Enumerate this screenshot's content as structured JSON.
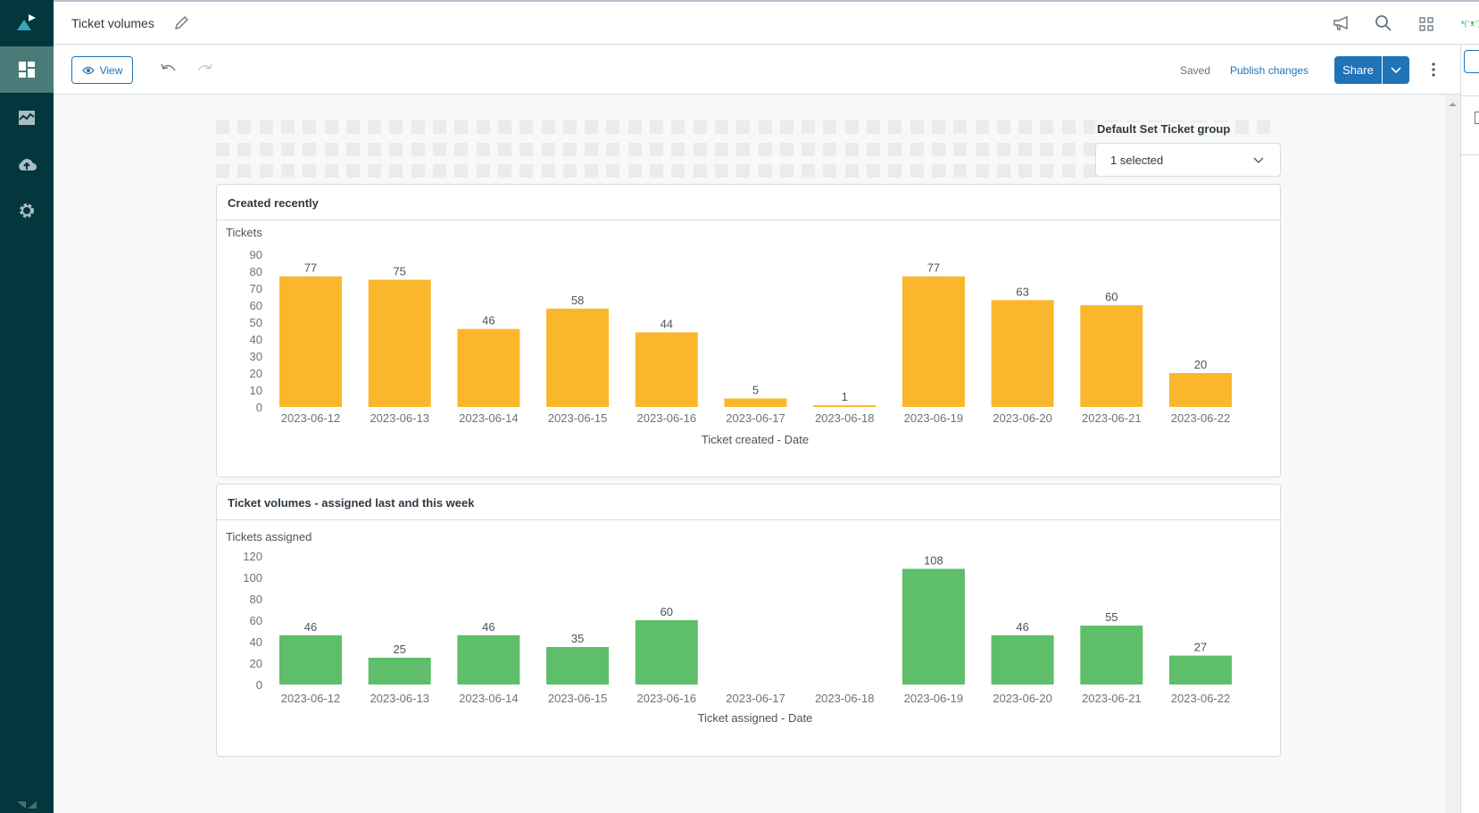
{
  "header": {
    "title": "Ticket volumes",
    "user_text": "ᵜ(ᵔᴥᵔ)"
  },
  "toolbar": {
    "view_label": "View",
    "saved_label": "Saved",
    "publish_label": "Publish changes",
    "share_label": "Share"
  },
  "filter": {
    "label": "Default Set Ticket group",
    "value": "1 selected"
  },
  "sidebar": {
    "items": [
      {
        "name": "dashboards",
        "active": true
      },
      {
        "name": "reports"
      },
      {
        "name": "datasets"
      },
      {
        "name": "admin"
      }
    ]
  },
  "colors": {
    "sidebar": "#03363d",
    "accent": "#1f73b7",
    "created": "#fbb72b",
    "assigned": "#5ebe6a"
  },
  "chart_data": [
    {
      "type": "bar",
      "title": "Created recently",
      "ylabel": "Tickets",
      "xlabel": "Ticket created - Date",
      "ylim": [
        0,
        90
      ],
      "yticks": [
        0,
        10,
        20,
        30,
        40,
        50,
        60,
        70,
        80,
        90
      ],
      "categories": [
        "2023-06-12",
        "2023-06-13",
        "2023-06-14",
        "2023-06-15",
        "2023-06-16",
        "2023-06-17",
        "2023-06-18",
        "2023-06-19",
        "2023-06-20",
        "2023-06-21",
        "2023-06-22"
      ],
      "values": [
        77,
        75,
        46,
        58,
        44,
        5,
        1,
        77,
        63,
        60,
        20
      ],
      "color": "#fbb72b",
      "grid": false
    },
    {
      "type": "bar",
      "title": "Ticket volumes - assigned last and this week",
      "ylabel": "Tickets assigned",
      "xlabel": "Ticket assigned - Date",
      "ylim": [
        0,
        120
      ],
      "yticks": [
        0,
        20,
        40,
        60,
        80,
        100,
        120
      ],
      "categories": [
        "2023-06-12",
        "2023-06-13",
        "2023-06-14",
        "2023-06-15",
        "2023-06-16",
        "2023-06-17",
        "2023-06-18",
        "2023-06-19",
        "2023-06-20",
        "2023-06-21",
        "2023-06-22"
      ],
      "values": [
        46,
        25,
        46,
        35,
        60,
        null,
        null,
        108,
        46,
        55,
        27
      ],
      "color": "#5ebe6a",
      "grid": false
    }
  ]
}
